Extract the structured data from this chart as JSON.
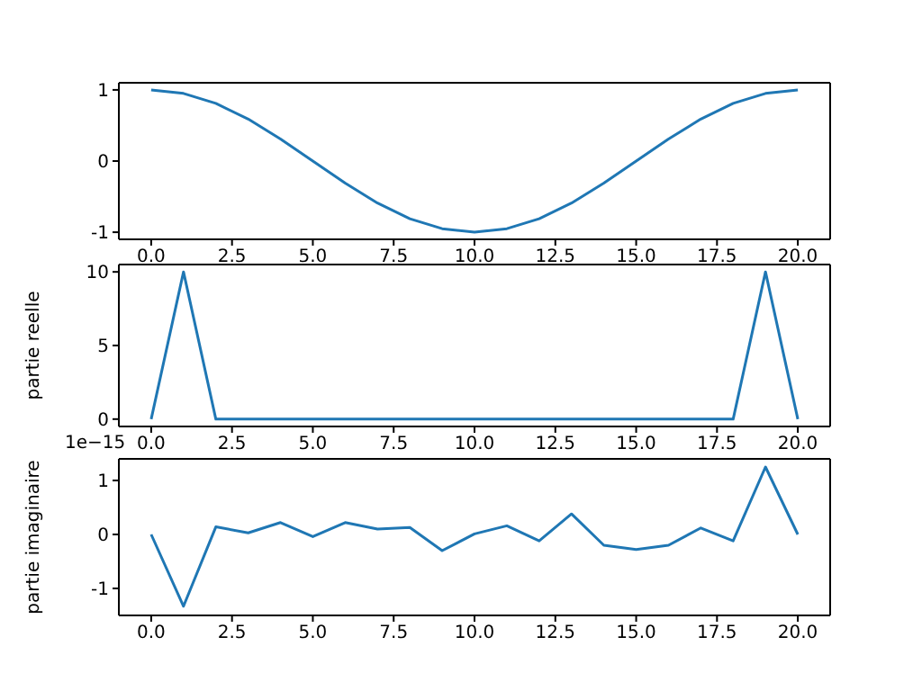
{
  "chart_data": [
    {
      "type": "line",
      "x": [
        0,
        1,
        2,
        3,
        4,
        5,
        6,
        7,
        8,
        9,
        10,
        11,
        12,
        13,
        14,
        15,
        16,
        17,
        18,
        19,
        20
      ],
      "values": [
        1,
        0.95,
        0.81,
        0.59,
        0.31,
        0,
        -0.31,
        -0.59,
        -0.81,
        -0.95,
        -1,
        -0.95,
        -0.81,
        -0.59,
        -0.31,
        0,
        0.31,
        0.59,
        0.81,
        0.95,
        1
      ],
      "color": "#1f77b4",
      "xlim": [
        -1,
        21
      ],
      "xticks": [
        {
          "value": 0,
          "label": "0.0"
        },
        {
          "value": 2.5,
          "label": "2.5"
        },
        {
          "value": 5,
          "label": "5.0"
        },
        {
          "value": 7.5,
          "label": "7.5"
        },
        {
          "value": 10,
          "label": "10.0"
        },
        {
          "value": 12.5,
          "label": "12.5"
        },
        {
          "value": 15,
          "label": "15.0"
        },
        {
          "value": 17.5,
          "label": "17.5"
        },
        {
          "value": 20,
          "label": "20.0"
        }
      ],
      "ylim": [
        -1.1,
        1.1
      ],
      "yticks": [
        -1,
        0,
        1
      ],
      "grid": false,
      "legend": false
    },
    {
      "type": "line",
      "ylabel": "partie reelle",
      "x": [
        0,
        1,
        2,
        3,
        4,
        5,
        6,
        7,
        8,
        9,
        10,
        11,
        12,
        13,
        14,
        15,
        16,
        17,
        18,
        19,
        20
      ],
      "values": [
        0,
        10,
        0,
        0,
        0,
        0,
        0,
        0,
        0,
        0,
        0,
        0,
        0,
        0,
        0,
        0,
        0,
        0,
        0,
        10,
        0
      ],
      "color": "#1f77b4",
      "xlim": [
        -1,
        21
      ],
      "xticks": [
        {
          "value": 0,
          "label": "0.0"
        },
        {
          "value": 2.5,
          "label": "2.5"
        },
        {
          "value": 5,
          "label": "5.0"
        },
        {
          "value": 7.5,
          "label": "7.5"
        },
        {
          "value": 10,
          "label": "10.0"
        },
        {
          "value": 12.5,
          "label": "12.5"
        },
        {
          "value": 15,
          "label": "15.0"
        },
        {
          "value": 17.5,
          "label": "17.5"
        },
        {
          "value": 20,
          "label": "20.0"
        }
      ],
      "ylim": [
        -0.5,
        10.5
      ],
      "yticks": [
        0,
        5,
        10
      ],
      "grid": false,
      "legend": false
    },
    {
      "type": "line",
      "ylabel": "partie imaginaire",
      "annotations": [
        "1e−15"
      ],
      "x": [
        0,
        1,
        2,
        3,
        4,
        5,
        6,
        7,
        8,
        9,
        10,
        11,
        12,
        13,
        14,
        15,
        16,
        17,
        18,
        19,
        20
      ],
      "values": [
        0,
        -1.33,
        0.14,
        0.03,
        0.22,
        -0.04,
        0.22,
        0.1,
        0.13,
        -0.3,
        0.01,
        0.16,
        -0.12,
        0.38,
        -0.2,
        -0.28,
        -0.2,
        0.12,
        -0.12,
        1.25,
        0
      ],
      "color": "#1f77b4",
      "xlim": [
        -1,
        21
      ],
      "xticks": [
        {
          "value": 0,
          "label": "0.0"
        },
        {
          "value": 2.5,
          "label": "2.5"
        },
        {
          "value": 5,
          "label": "5.0"
        },
        {
          "value": 7.5,
          "label": "7.5"
        },
        {
          "value": 10,
          "label": "10.0"
        },
        {
          "value": 12.5,
          "label": "12.5"
        },
        {
          "value": 15,
          "label": "15.0"
        },
        {
          "value": 17.5,
          "label": "17.5"
        },
        {
          "value": 20,
          "label": "20.0"
        }
      ],
      "ylim": [
        -1.5,
        1.4
      ],
      "yticks": [
        -1,
        0,
        1
      ],
      "grid": false,
      "legend": false
    }
  ]
}
